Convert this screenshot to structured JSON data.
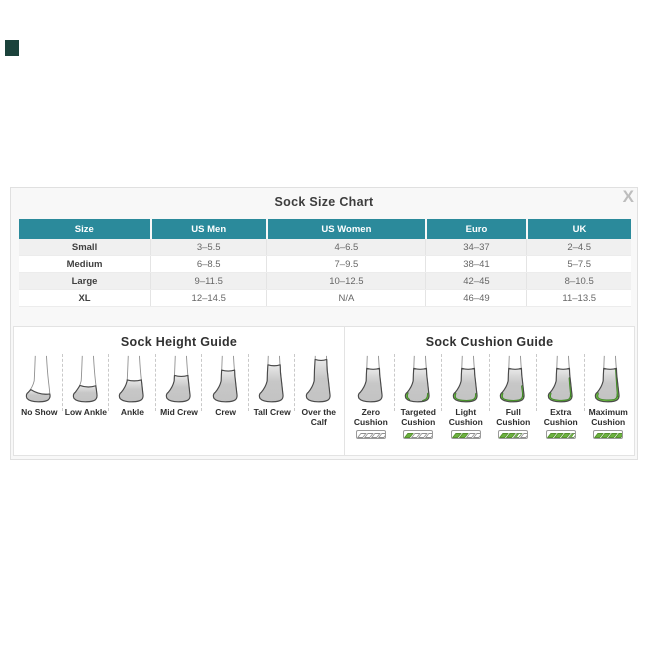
{
  "brand_mark": {
    "color": "#1b423b"
  },
  "modal": {
    "title": "Sock Size Chart",
    "close": "X",
    "table": {
      "header_color": "#2B8A9B",
      "columns": [
        "Size",
        "US Men",
        "US Women",
        "Euro",
        "UK"
      ],
      "rows": [
        [
          "Small",
          "3–5.5",
          "4–6.5",
          "34–37",
          "2–4.5"
        ],
        [
          "Medium",
          "6–8.5",
          "7–9.5",
          "38–41",
          "5–7.5"
        ],
        [
          "Large",
          "9–11.5",
          "10–12.5",
          "42–45",
          "8–10.5"
        ],
        [
          "XL",
          "12–14.5",
          "N/A",
          "46–49",
          "11–13.5"
        ]
      ]
    },
    "height_guide": {
      "title": "Sock Height Guide",
      "items": [
        {
          "label": "No Show",
          "cuff": 41
        },
        {
          "label": "Low Ankle",
          "cuff": 36
        },
        {
          "label": "Ankle",
          "cuff": 30
        },
        {
          "label": "Mid Crew",
          "cuff": 25
        },
        {
          "label": "Crew",
          "cuff": 19
        },
        {
          "label": "Tall Crew",
          "cuff": 13
        },
        {
          "label": "Over the Calf",
          "cuff": 7
        }
      ]
    },
    "cushion_guide": {
      "title": "Sock Cushion Guide",
      "green": "#6CB33F",
      "items": [
        {
          "label": "Zero Cushion",
          "zone": "none",
          "meter": 0
        },
        {
          "label": "Targeted Cushion",
          "zone": "targeted",
          "meter": 1
        },
        {
          "label": "Light Cushion",
          "zone": "light",
          "meter": 2
        },
        {
          "label": "Full Cushion",
          "zone": "full",
          "meter": 2.5
        },
        {
          "label": "Extra Cushion",
          "zone": "extra",
          "meter": 3.5
        },
        {
          "label": "Maximum Cushion",
          "zone": "max",
          "meter": 4
        }
      ]
    }
  }
}
